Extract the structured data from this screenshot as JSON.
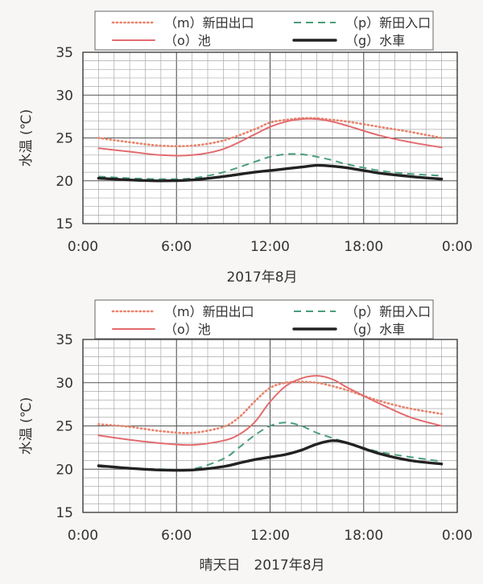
{
  "charts": [
    {
      "xlabel": "2017年8月",
      "ylabel": "水温 (℃)"
    },
    {
      "xlabel": "晴天日　2017年8月",
      "ylabel": "水温 (℃)"
    }
  ],
  "chart_data": [
    {
      "type": "line",
      "title": "",
      "xlabel": "2017年8月",
      "ylabel": "水温 (℃)",
      "x_unit": "hours",
      "xlim": [
        0,
        24
      ],
      "ylim": [
        15,
        35
      ],
      "x_ticks": [
        "0:00",
        "6:00",
        "12:00",
        "18:00",
        "0:00"
      ],
      "y_ticks": [
        "15",
        "20",
        "25",
        "30",
        "35"
      ],
      "grid": true,
      "legend_position": "top",
      "x": [
        1,
        3,
        5,
        7,
        9,
        11,
        12,
        13,
        14,
        15,
        16,
        17,
        19,
        21,
        23
      ],
      "series": [
        {
          "name": "（m）新田出口",
          "color": "#e8836b",
          "style": "dotted",
          "values": [
            25.0,
            24.5,
            24.1,
            24.1,
            24.7,
            26.0,
            26.8,
            27.1,
            27.3,
            27.3,
            27.1,
            26.9,
            26.3,
            25.7,
            25.0
          ]
        },
        {
          "name": "（p）新田入口",
          "color": "#4a9e7a",
          "style": "dashed",
          "values": [
            20.5,
            20.3,
            20.2,
            20.3,
            21.0,
            22.2,
            22.8,
            23.1,
            23.1,
            22.8,
            22.4,
            21.9,
            21.2,
            20.8,
            20.6
          ]
        },
        {
          "name": "（o）池",
          "color": "#e36b6e",
          "style": "solid",
          "values": [
            23.8,
            23.4,
            23.0,
            23.0,
            23.7,
            25.4,
            26.3,
            26.9,
            27.2,
            27.2,
            26.9,
            26.4,
            25.3,
            24.5,
            23.9
          ]
        },
        {
          "name": "（g）水車",
          "color": "#222222",
          "style": "thick",
          "values": [
            20.3,
            20.1,
            20.0,
            20.1,
            20.5,
            21.0,
            21.2,
            21.4,
            21.6,
            21.8,
            21.7,
            21.5,
            20.9,
            20.5,
            20.2
          ]
        }
      ]
    },
    {
      "type": "line",
      "title": "",
      "xlabel": "晴天日　2017年8月",
      "ylabel": "水温 (℃)",
      "x_unit": "hours",
      "xlim": [
        0,
        24
      ],
      "ylim": [
        15,
        35
      ],
      "x_ticks": [
        "0:00",
        "6:00",
        "12:00",
        "18:00",
        "0:00"
      ],
      "y_ticks": [
        "15",
        "20",
        "25",
        "30",
        "35"
      ],
      "grid": true,
      "legend_position": "top",
      "x": [
        1,
        3,
        5,
        7,
        9,
        10,
        11,
        12,
        13,
        14,
        15,
        16,
        17,
        19,
        21,
        23
      ],
      "series": [
        {
          "name": "（m）新田出口",
          "color": "#e8836b",
          "style": "dotted",
          "values": [
            25.2,
            24.9,
            24.4,
            24.2,
            24.9,
            26.0,
            27.8,
            29.4,
            30.0,
            30.1,
            30.0,
            29.6,
            29.1,
            27.9,
            27.0,
            26.4
          ]
        },
        {
          "name": "（p）新田入口",
          "color": "#4a9e7a",
          "style": "dashed",
          "values": [
            20.3,
            20.1,
            20.0,
            20.0,
            21.2,
            22.5,
            23.9,
            25.0,
            25.4,
            25.0,
            24.2,
            23.6,
            23.0,
            22.0,
            21.4,
            20.9
          ]
        },
        {
          "name": "（o）池",
          "color": "#e36b6e",
          "style": "solid",
          "values": [
            23.9,
            23.4,
            23.0,
            22.8,
            23.3,
            24.0,
            25.4,
            27.8,
            29.6,
            30.5,
            30.8,
            30.4,
            29.4,
            27.6,
            26.0,
            25.0
          ]
        },
        {
          "name": "（g）水車",
          "color": "#222222",
          "style": "thick",
          "values": [
            20.4,
            20.1,
            19.9,
            19.9,
            20.3,
            20.7,
            21.1,
            21.4,
            21.7,
            22.2,
            22.9,
            23.3,
            23.0,
            21.8,
            21.0,
            20.6
          ]
        }
      ]
    }
  ]
}
